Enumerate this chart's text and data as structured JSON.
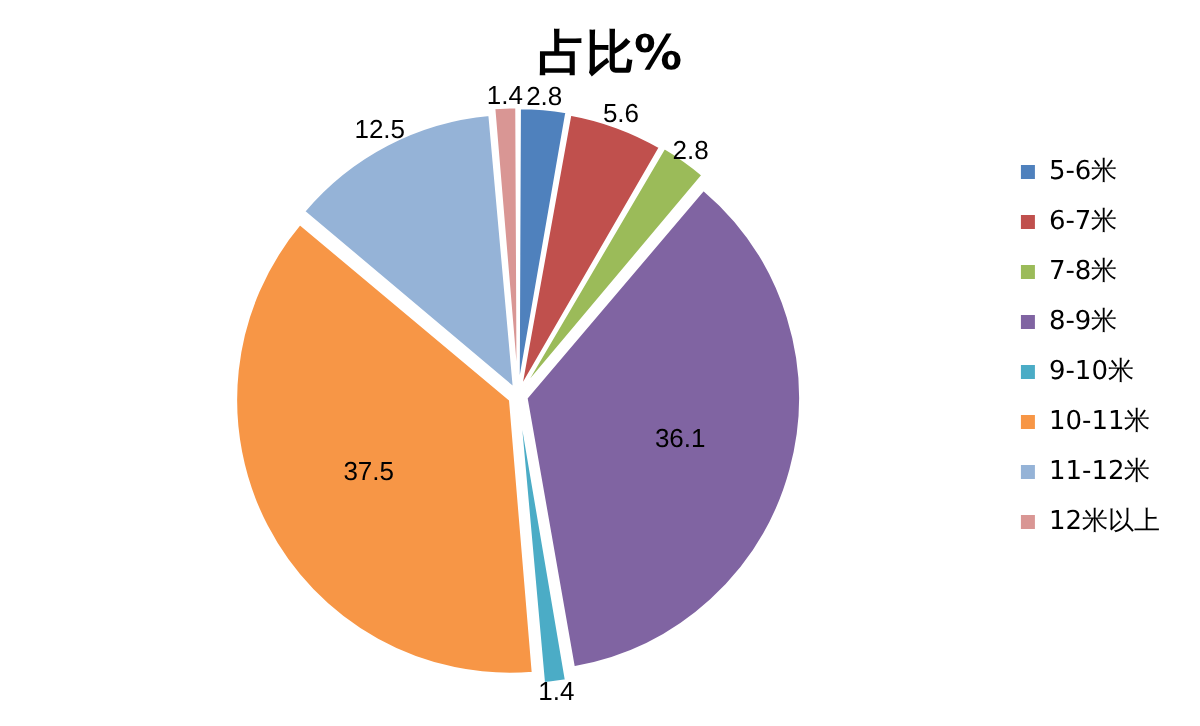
{
  "chart_data": {
    "type": "pie",
    "title": "占比%",
    "categories": [
      "5-6米",
      "6-7米",
      "7-8米",
      "8-9米",
      "9-10米",
      "10-11米",
      "11-12米",
      "12米以上"
    ],
    "values": [
      2.8,
      5.6,
      2.8,
      36.1,
      1.4,
      37.5,
      12.5,
      1.4
    ],
    "colors": [
      "#4f81bd",
      "#c0504d",
      "#9bbb59",
      "#8064a2",
      "#4bacc6",
      "#f79646",
      "#95b3d7",
      "#d99694"
    ],
    "data_labels": true,
    "legend": "right"
  }
}
